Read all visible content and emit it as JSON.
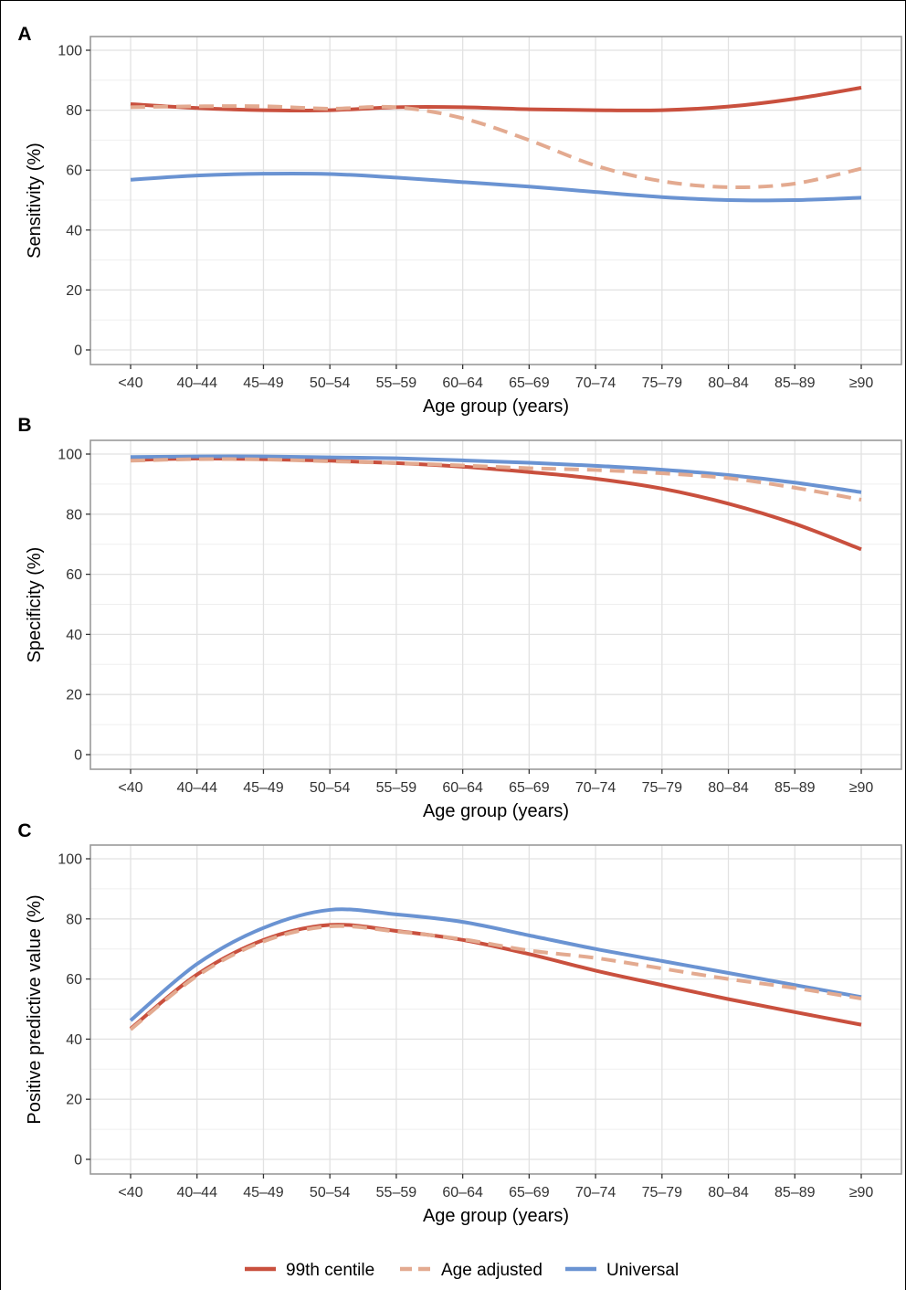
{
  "colors": {
    "centile99": "#c9503e",
    "age_adjusted": "#e3aa90",
    "universal": "#6a93d2",
    "grid": "#e2e2e2",
    "panel_border": "#999999"
  },
  "legend": {
    "position": "bottom",
    "items": [
      {
        "label": "99th centile"
      },
      {
        "label": "Age adjusted"
      },
      {
        "label": "Universal"
      }
    ]
  },
  "chart_data": [
    {
      "type": "line",
      "panel": "A",
      "xlabel": "Age group (years)",
      "ylabel": "Sensitivity (%)",
      "ylim": [
        0,
        100
      ],
      "yticks": [
        "0",
        "20",
        "40",
        "60",
        "80",
        "100"
      ],
      "grid": true,
      "categories": [
        "<40",
        "40–44",
        "45–49",
        "50–54",
        "55–59",
        "60–64",
        "65–69",
        "70–74",
        "75–79",
        "80–84",
        "85–89",
        "≥90"
      ],
      "series": [
        {
          "name": "99th centile",
          "style": "solid",
          "values": [
            82,
            80.7,
            80,
            80,
            81,
            81,
            80.3,
            80,
            80,
            81.2,
            83.8,
            87.5
          ]
        },
        {
          "name": "Age adjusted",
          "style": "dashed",
          "values": [
            81,
            81.3,
            81.3,
            80.5,
            81,
            77.3,
            70,
            61.5,
            56.3,
            54.3,
            55.5,
            60.5
          ]
        },
        {
          "name": "Universal",
          "style": "solid",
          "values": [
            56.8,
            58.2,
            58.8,
            58.7,
            57.5,
            56,
            54.5,
            52.7,
            51,
            50,
            50,
            50.8
          ]
        }
      ]
    },
    {
      "type": "line",
      "panel": "B",
      "xlabel": "Age group (years)",
      "ylabel": "Specificity (%)",
      "ylim": [
        0,
        100
      ],
      "yticks": [
        "0",
        "20",
        "40",
        "60",
        "80",
        "100"
      ],
      "grid": true,
      "categories": [
        "<40",
        "40–44",
        "45–49",
        "50–54",
        "55–59",
        "60–64",
        "65–69",
        "70–74",
        "75–79",
        "80–84",
        "85–89",
        "≥90"
      ],
      "series": [
        {
          "name": "99th centile",
          "style": "solid",
          "values": [
            98,
            98.5,
            98.3,
            97.8,
            97,
            95.8,
            94,
            91.8,
            88.5,
            83.5,
            76.8,
            68.3
          ]
        },
        {
          "name": "Age adjusted",
          "style": "dashed",
          "values": [
            97.8,
            98.3,
            98.2,
            97.6,
            97,
            96.2,
            95.3,
            94.7,
            93.6,
            92,
            88.8,
            84.8
          ]
        },
        {
          "name": "Universal",
          "style": "solid",
          "values": [
            99,
            99.2,
            99.2,
            98.9,
            98.6,
            97.9,
            97.1,
            96.1,
            94.8,
            93,
            90.5,
            87.3
          ]
        }
      ]
    },
    {
      "type": "line",
      "panel": "C",
      "xlabel": "Age group (years)",
      "ylabel": "Positive predictive value (%)",
      "ylim": [
        0,
        100
      ],
      "yticks": [
        "0",
        "20",
        "40",
        "60",
        "80",
        "100"
      ],
      "grid": true,
      "categories": [
        "<40",
        "40–44",
        "45–49",
        "50–54",
        "55–59",
        "60–64",
        "65–69",
        "70–74",
        "75–79",
        "80–84",
        "85–89",
        "≥90"
      ],
      "series": [
        {
          "name": "99th centile",
          "style": "solid",
          "values": [
            43.5,
            61.5,
            73,
            78,
            76,
            73,
            68.3,
            62.8,
            58,
            53.3,
            49,
            44.8
          ]
        },
        {
          "name": "Age adjusted",
          "style": "dashed",
          "values": [
            43.2,
            61,
            72.5,
            77.5,
            75.8,
            73.2,
            69.5,
            67,
            63.5,
            60,
            57,
            53.5
          ]
        },
        {
          "name": "Universal",
          "style": "solid",
          "values": [
            46.2,
            65,
            77,
            83,
            81.5,
            79,
            74.5,
            70,
            66,
            62,
            58,
            54
          ]
        }
      ]
    }
  ]
}
